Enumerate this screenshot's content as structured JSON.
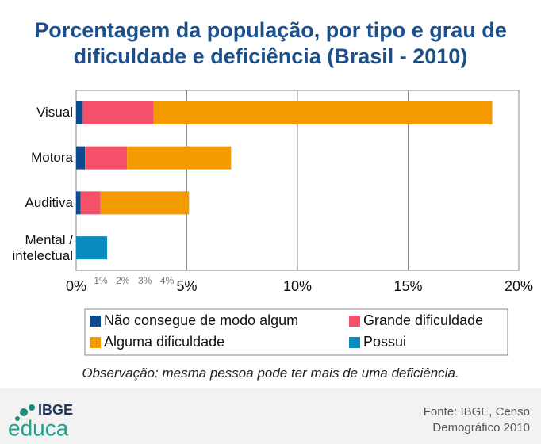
{
  "chart_data": {
    "type": "stacked-barh",
    "title": "Porcentagem da população, por tipo e grau de dificuldade e deficiência (Brasil - 2010)",
    "categories": [
      "Visual",
      "Motora",
      "Auditiva",
      "Mental / intelectual"
    ],
    "series": [
      {
        "name": "Não consegue de modo algum",
        "color": "#0e4a8e",
        "values": [
          0.3,
          0.4,
          0.2,
          null
        ]
      },
      {
        "name": "Grande dificuldade",
        "color": "#f4506a",
        "values": [
          3.2,
          1.9,
          0.9,
          null
        ]
      },
      {
        "name": "Alguma dificuldade",
        "color": "#f29a00",
        "values": [
          15.3,
          4.7,
          4.0,
          null
        ]
      },
      {
        "name": "Possui",
        "color": "#0a8bbf",
        "values": [
          null,
          null,
          null,
          1.4
        ]
      }
    ],
    "xlim": [
      0,
      20
    ],
    "xticks": [
      {
        "value": 0,
        "label": "0%"
      },
      {
        "value": 5,
        "label": "5%"
      },
      {
        "value": 10,
        "label": "10%"
      },
      {
        "value": 15,
        "label": "15%"
      },
      {
        "value": 20,
        "label": "20%"
      }
    ],
    "xminorticks": [
      {
        "value": 1,
        "label": "1%"
      },
      {
        "value": 2,
        "label": "2%"
      },
      {
        "value": 3,
        "label": "3%"
      },
      {
        "value": 4,
        "label": "4%"
      }
    ],
    "grid": true,
    "note": "Observação: mesma pessoa pode ter mais de uma deficiência."
  },
  "footer": {
    "logo_top": "IBGE",
    "logo_bottom": "educa",
    "source": "Fonte: IBGE, Censo Demográfico 2010"
  }
}
